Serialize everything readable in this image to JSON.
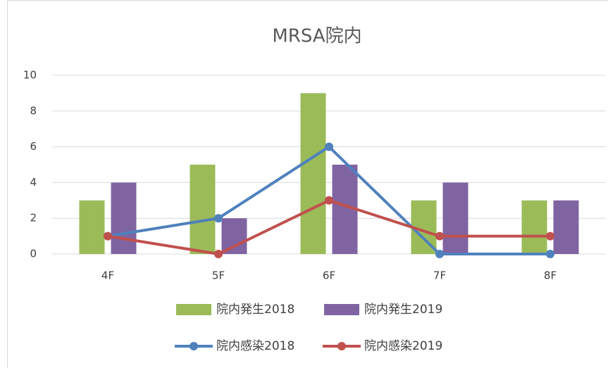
{
  "chart_data": {
    "type": "bar",
    "title": "MRSA院内",
    "categories": [
      "4F",
      "5F",
      "6F",
      "7F",
      "8F"
    ],
    "series": [
      {
        "name": "院内発生2018",
        "type": "bar",
        "color": "#9bbb59",
        "values": [
          3,
          5,
          9,
          3,
          3
        ]
      },
      {
        "name": "院内発生2019",
        "type": "bar",
        "color": "#8064a2",
        "values": [
          4,
          2,
          5,
          4,
          3
        ]
      },
      {
        "name": "院内感染2018",
        "type": "line",
        "color": "#4f81bd",
        "values": [
          1,
          2,
          6,
          0,
          0
        ]
      },
      {
        "name": "院内感染2019",
        "type": "line",
        "color": "#c0504d",
        "values": [
          1,
          0,
          3,
          1,
          1
        ]
      }
    ],
    "ylim": [
      0,
      10
    ],
    "yticks": [
      0,
      2,
      4,
      6,
      8,
      10
    ],
    "grid": true,
    "legend": "bottom"
  }
}
